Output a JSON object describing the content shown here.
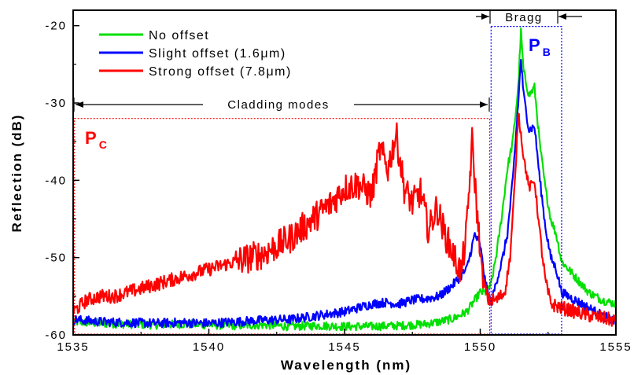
{
  "chart_data": {
    "type": "line",
    "xlabel": "Wavelength (nm)",
    "ylabel": "Reflection (dB)",
    "xlim": [
      1535,
      1555
    ],
    "ylim": [
      -60,
      -18
    ],
    "x_ticks": [
      1535,
      1540,
      1545,
      1550,
      1555
    ],
    "y_ticks": [
      -60,
      -50,
      -40,
      -30,
      -20
    ],
    "x_tick_labels": [
      "1535",
      "1540",
      "1545",
      "1550",
      "1555"
    ],
    "y_tick_labels": [
      "-60",
      "-50",
      "-40",
      "-30",
      "-20"
    ],
    "grid": false,
    "legend_position": "top-left",
    "series": [
      {
        "name": "No offset",
        "color": "#00e000",
        "points": [
          [
            1535.0,
            -58.3
          ],
          [
            1536.0,
            -58.5
          ],
          [
            1537.0,
            -58.6
          ],
          [
            1538.0,
            -58.7
          ],
          [
            1539.0,
            -58.6
          ],
          [
            1540.0,
            -58.7
          ],
          [
            1541.0,
            -58.8
          ],
          [
            1542.0,
            -58.7
          ],
          [
            1543.0,
            -58.9
          ],
          [
            1544.0,
            -58.8
          ],
          [
            1545.0,
            -58.9
          ],
          [
            1546.0,
            -58.9
          ],
          [
            1547.0,
            -58.8
          ],
          [
            1548.0,
            -58.6
          ],
          [
            1548.5,
            -58.3
          ],
          [
            1549.0,
            -57.9
          ],
          [
            1549.5,
            -57.0
          ],
          [
            1549.8,
            -55.5
          ],
          [
            1550.0,
            -54.5
          ],
          [
            1550.2,
            -54.5
          ],
          [
            1550.4,
            -53.5
          ],
          [
            1550.6,
            -49.5
          ],
          [
            1550.8,
            -44.5
          ],
          [
            1551.0,
            -38.5
          ],
          [
            1551.2,
            -35.0
          ],
          [
            1551.4,
            -28.0
          ],
          [
            1551.5,
            -20.8
          ],
          [
            1551.6,
            -26.0
          ],
          [
            1551.8,
            -29.0
          ],
          [
            1552.0,
            -28.0
          ],
          [
            1552.2,
            -35.5
          ],
          [
            1552.4,
            -41.0
          ],
          [
            1552.6,
            -45.0
          ],
          [
            1552.8,
            -47.0
          ],
          [
            1553.0,
            -50.5
          ],
          [
            1553.5,
            -52.5
          ],
          [
            1554.0,
            -54.5
          ],
          [
            1554.5,
            -55.5
          ],
          [
            1555.0,
            -56.0
          ]
        ]
      },
      {
        "name": "Slight offset (1.6μm)",
        "color": "#0000ff",
        "points": [
          [
            1535.0,
            -58.0
          ],
          [
            1536.0,
            -58.3
          ],
          [
            1537.0,
            -58.4
          ],
          [
            1538.0,
            -58.5
          ],
          [
            1539.0,
            -58.4
          ],
          [
            1540.0,
            -58.5
          ],
          [
            1541.0,
            -58.3
          ],
          [
            1542.0,
            -58.1
          ],
          [
            1543.0,
            -58.0
          ],
          [
            1544.0,
            -57.5
          ],
          [
            1545.0,
            -57.0
          ],
          [
            1545.5,
            -56.5
          ],
          [
            1546.0,
            -56.0
          ],
          [
            1546.5,
            -55.8
          ],
          [
            1547.0,
            -56.0
          ],
          [
            1547.5,
            -55.5
          ],
          [
            1548.0,
            -55.3
          ],
          [
            1548.5,
            -55.0
          ],
          [
            1549.0,
            -53.5
          ],
          [
            1549.5,
            -51.5
          ],
          [
            1549.8,
            -47.0
          ],
          [
            1550.0,
            -48.5
          ],
          [
            1550.2,
            -53.5
          ],
          [
            1550.4,
            -56.0
          ],
          [
            1550.6,
            -53.0
          ],
          [
            1550.8,
            -50.5
          ],
          [
            1551.0,
            -47.0
          ],
          [
            1551.2,
            -40.0
          ],
          [
            1551.4,
            -30.0
          ],
          [
            1551.5,
            -24.3
          ],
          [
            1551.6,
            -29.0
          ],
          [
            1551.8,
            -33.5
          ],
          [
            1552.0,
            -33.0
          ],
          [
            1552.2,
            -40.0
          ],
          [
            1552.4,
            -46.0
          ],
          [
            1552.6,
            -50.0
          ],
          [
            1552.8,
            -51.5
          ],
          [
            1553.0,
            -54.5
          ],
          [
            1553.5,
            -55.5
          ],
          [
            1554.0,
            -56.5
          ],
          [
            1554.5,
            -57.5
          ],
          [
            1555.0,
            -58.3
          ]
        ]
      },
      {
        "name": "Strong offset (7.8μm)",
        "color": "#ff0000",
        "points": [
          [
            1535.0,
            -57.0
          ],
          [
            1535.5,
            -55.5
          ],
          [
            1536.0,
            -55.0
          ],
          [
            1536.5,
            -55.0
          ],
          [
            1537.0,
            -54.5
          ],
          [
            1537.5,
            -54.0
          ],
          [
            1538.0,
            -53.5
          ],
          [
            1538.5,
            -53.0
          ],
          [
            1539.0,
            -52.5
          ],
          [
            1539.5,
            -52.0
          ],
          [
            1540.0,
            -51.5
          ],
          [
            1540.5,
            -51.0
          ],
          [
            1541.0,
            -50.5
          ],
          [
            1541.5,
            -50.0
          ],
          [
            1542.0,
            -49.5
          ],
          [
            1542.5,
            -48.5
          ],
          [
            1543.0,
            -47.5
          ],
          [
            1543.5,
            -46.0
          ],
          [
            1544.0,
            -44.5
          ],
          [
            1544.5,
            -43.0
          ],
          [
            1545.0,
            -41.0
          ],
          [
            1545.5,
            -40.5
          ],
          [
            1546.0,
            -42.0
          ],
          [
            1546.3,
            -36.0
          ],
          [
            1546.6,
            -38.5
          ],
          [
            1546.9,
            -34.0
          ],
          [
            1547.2,
            -41.0
          ],
          [
            1547.5,
            -43.0
          ],
          [
            1547.8,
            -41.5
          ],
          [
            1548.1,
            -46.5
          ],
          [
            1548.4,
            -43.5
          ],
          [
            1548.7,
            -47.0
          ],
          [
            1549.0,
            -49.5
          ],
          [
            1549.3,
            -52.0
          ],
          [
            1549.5,
            -46.5
          ],
          [
            1549.7,
            -35.0
          ],
          [
            1549.9,
            -45.0
          ],
          [
            1550.1,
            -53.0
          ],
          [
            1550.3,
            -55.5
          ],
          [
            1550.6,
            -55.5
          ],
          [
            1550.9,
            -54.5
          ],
          [
            1551.1,
            -50.0
          ],
          [
            1551.3,
            -39.0
          ],
          [
            1551.4,
            -31.0
          ],
          [
            1551.6,
            -37.0
          ],
          [
            1551.8,
            -41.0
          ],
          [
            1552.0,
            -40.0
          ],
          [
            1552.2,
            -47.0
          ],
          [
            1552.4,
            -53.0
          ],
          [
            1552.6,
            -56.0
          ],
          [
            1553.0,
            -56.5
          ],
          [
            1553.5,
            -57.0
          ],
          [
            1554.0,
            -57.5
          ],
          [
            1554.5,
            -57.8
          ],
          [
            1555.0,
            -58.2
          ]
        ]
      }
    ],
    "annotations": {
      "cladding_label": "Cladding modes",
      "bragg_label": "Bragg",
      "pc_main": "P",
      "pc_sub": "C",
      "pb_main": "P",
      "pb_sub": "B",
      "cladding_range": [
        1535.05,
        1550.35
      ],
      "cladding_top": -32,
      "bragg_range": [
        1550.4,
        1553.0
      ],
      "bragg_top": -20.1,
      "box_bottom": -59.9
    }
  }
}
